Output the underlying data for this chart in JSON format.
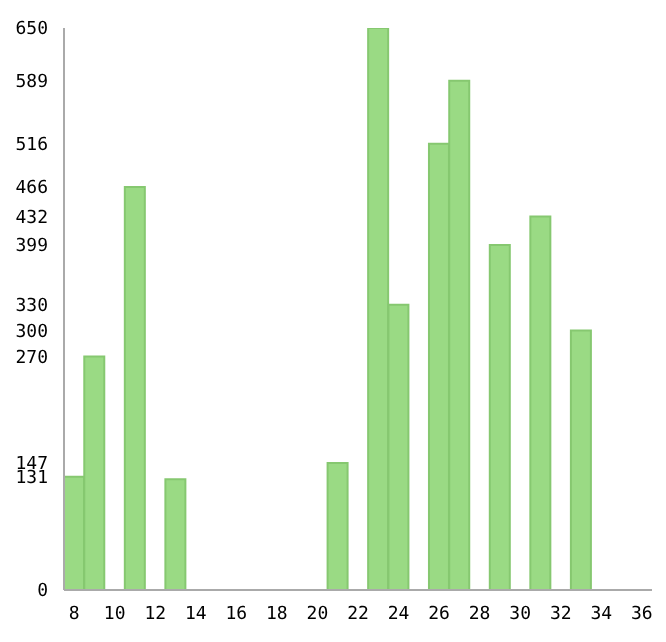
{
  "chart_data": {
    "type": "bar",
    "categories": [
      "8",
      null,
      "10",
      null,
      "12",
      null,
      "14",
      null,
      "16",
      null,
      "18",
      null,
      "20",
      null,
      "22",
      null,
      "24",
      null,
      "26",
      null,
      "28",
      null,
      "30",
      null,
      "32",
      null,
      "34",
      null,
      "36"
    ],
    "values": [
      131,
      270,
      0,
      466,
      0,
      128,
      0,
      0,
      0,
      0,
      0,
      0,
      0,
      147,
      0,
      650,
      330,
      0,
      516,
      589,
      0,
      399,
      0,
      432,
      0,
      300,
      0,
      0,
      0
    ],
    "color": "#9ada84",
    "ylim": [
      0,
      650
    ],
    "yticks": [
      0,
      131,
      147,
      270,
      300,
      330,
      399,
      432,
      466,
      516,
      589,
      650
    ]
  }
}
